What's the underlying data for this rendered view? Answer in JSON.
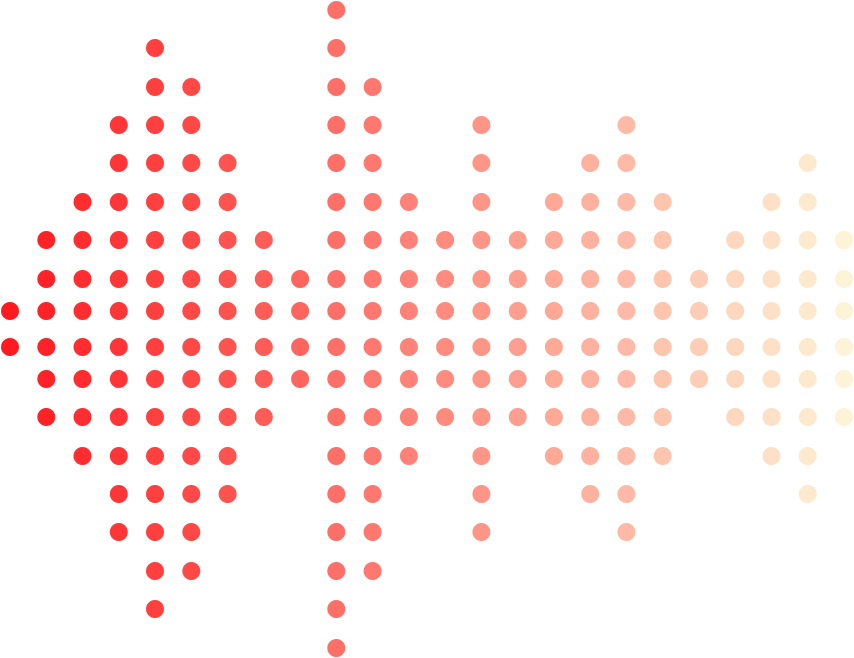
{
  "graphic": {
    "type": "dot-matrix-waveform",
    "column_levels": [
      1,
      3,
      4,
      6,
      8,
      7,
      5,
      3,
      2,
      9,
      7,
      4,
      3,
      6,
      3,
      4,
      5,
      6,
      4,
      2,
      3,
      4,
      5,
      3
    ],
    "start_color": "#ff1a1f",
    "end_color": "#fdf3d6"
  }
}
